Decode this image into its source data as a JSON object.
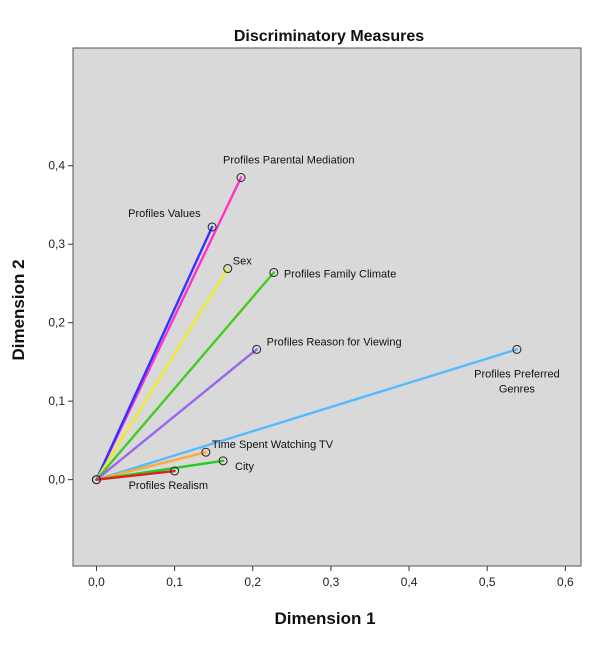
{
  "chart_data": {
    "type": "scatter",
    "title": "Discriminatory Measures",
    "xlabel": "Dimension 1",
    "ylabel": "Dimension 2",
    "xlim": [
      -0.03,
      0.62
    ],
    "ylim": [
      -0.11,
      0.55
    ],
    "xticks": [
      "0,0",
      "0,1",
      "0,2",
      "0,3",
      "0,4",
      "0,5",
      "0,6"
    ],
    "yticks": [
      "0,0",
      "0,1",
      "0,2",
      "0,3",
      "0,4"
    ],
    "xtick_values": [
      0,
      0.1,
      0.2,
      0.3,
      0.4,
      0.5,
      0.6
    ],
    "ytick_values": [
      0,
      0.1,
      0.2,
      0.3,
      0.4
    ],
    "grid": false,
    "points": [
      {
        "name": "Profiles Parental Mediation",
        "x": 0.185,
        "y": 0.385,
        "color": "#ff33cc"
      },
      {
        "name": "Profiles Values",
        "x": 0.148,
        "y": 0.322,
        "color": "#3333ff"
      },
      {
        "name": "Sex",
        "x": 0.168,
        "y": 0.269,
        "color": "#ecec2a"
      },
      {
        "name": "Profiles Family Climate",
        "x": 0.227,
        "y": 0.264,
        "color": "#44cc22"
      },
      {
        "name": "Profiles Reason for Viewing",
        "x": 0.205,
        "y": 0.166,
        "color": "#9966ee"
      },
      {
        "name": "Profiles Preferred Genres",
        "x": 0.538,
        "y": 0.166,
        "color": "#55bbff"
      },
      {
        "name": "Time Spent Watching TV",
        "x": 0.14,
        "y": 0.035,
        "color": "#ffaa33"
      },
      {
        "name": "City",
        "x": 0.162,
        "y": 0.024,
        "color": "#22cc22"
      },
      {
        "name": "Profiles Realism",
        "x": 0.1,
        "y": 0.011,
        "color": "#dd2222"
      }
    ]
  }
}
